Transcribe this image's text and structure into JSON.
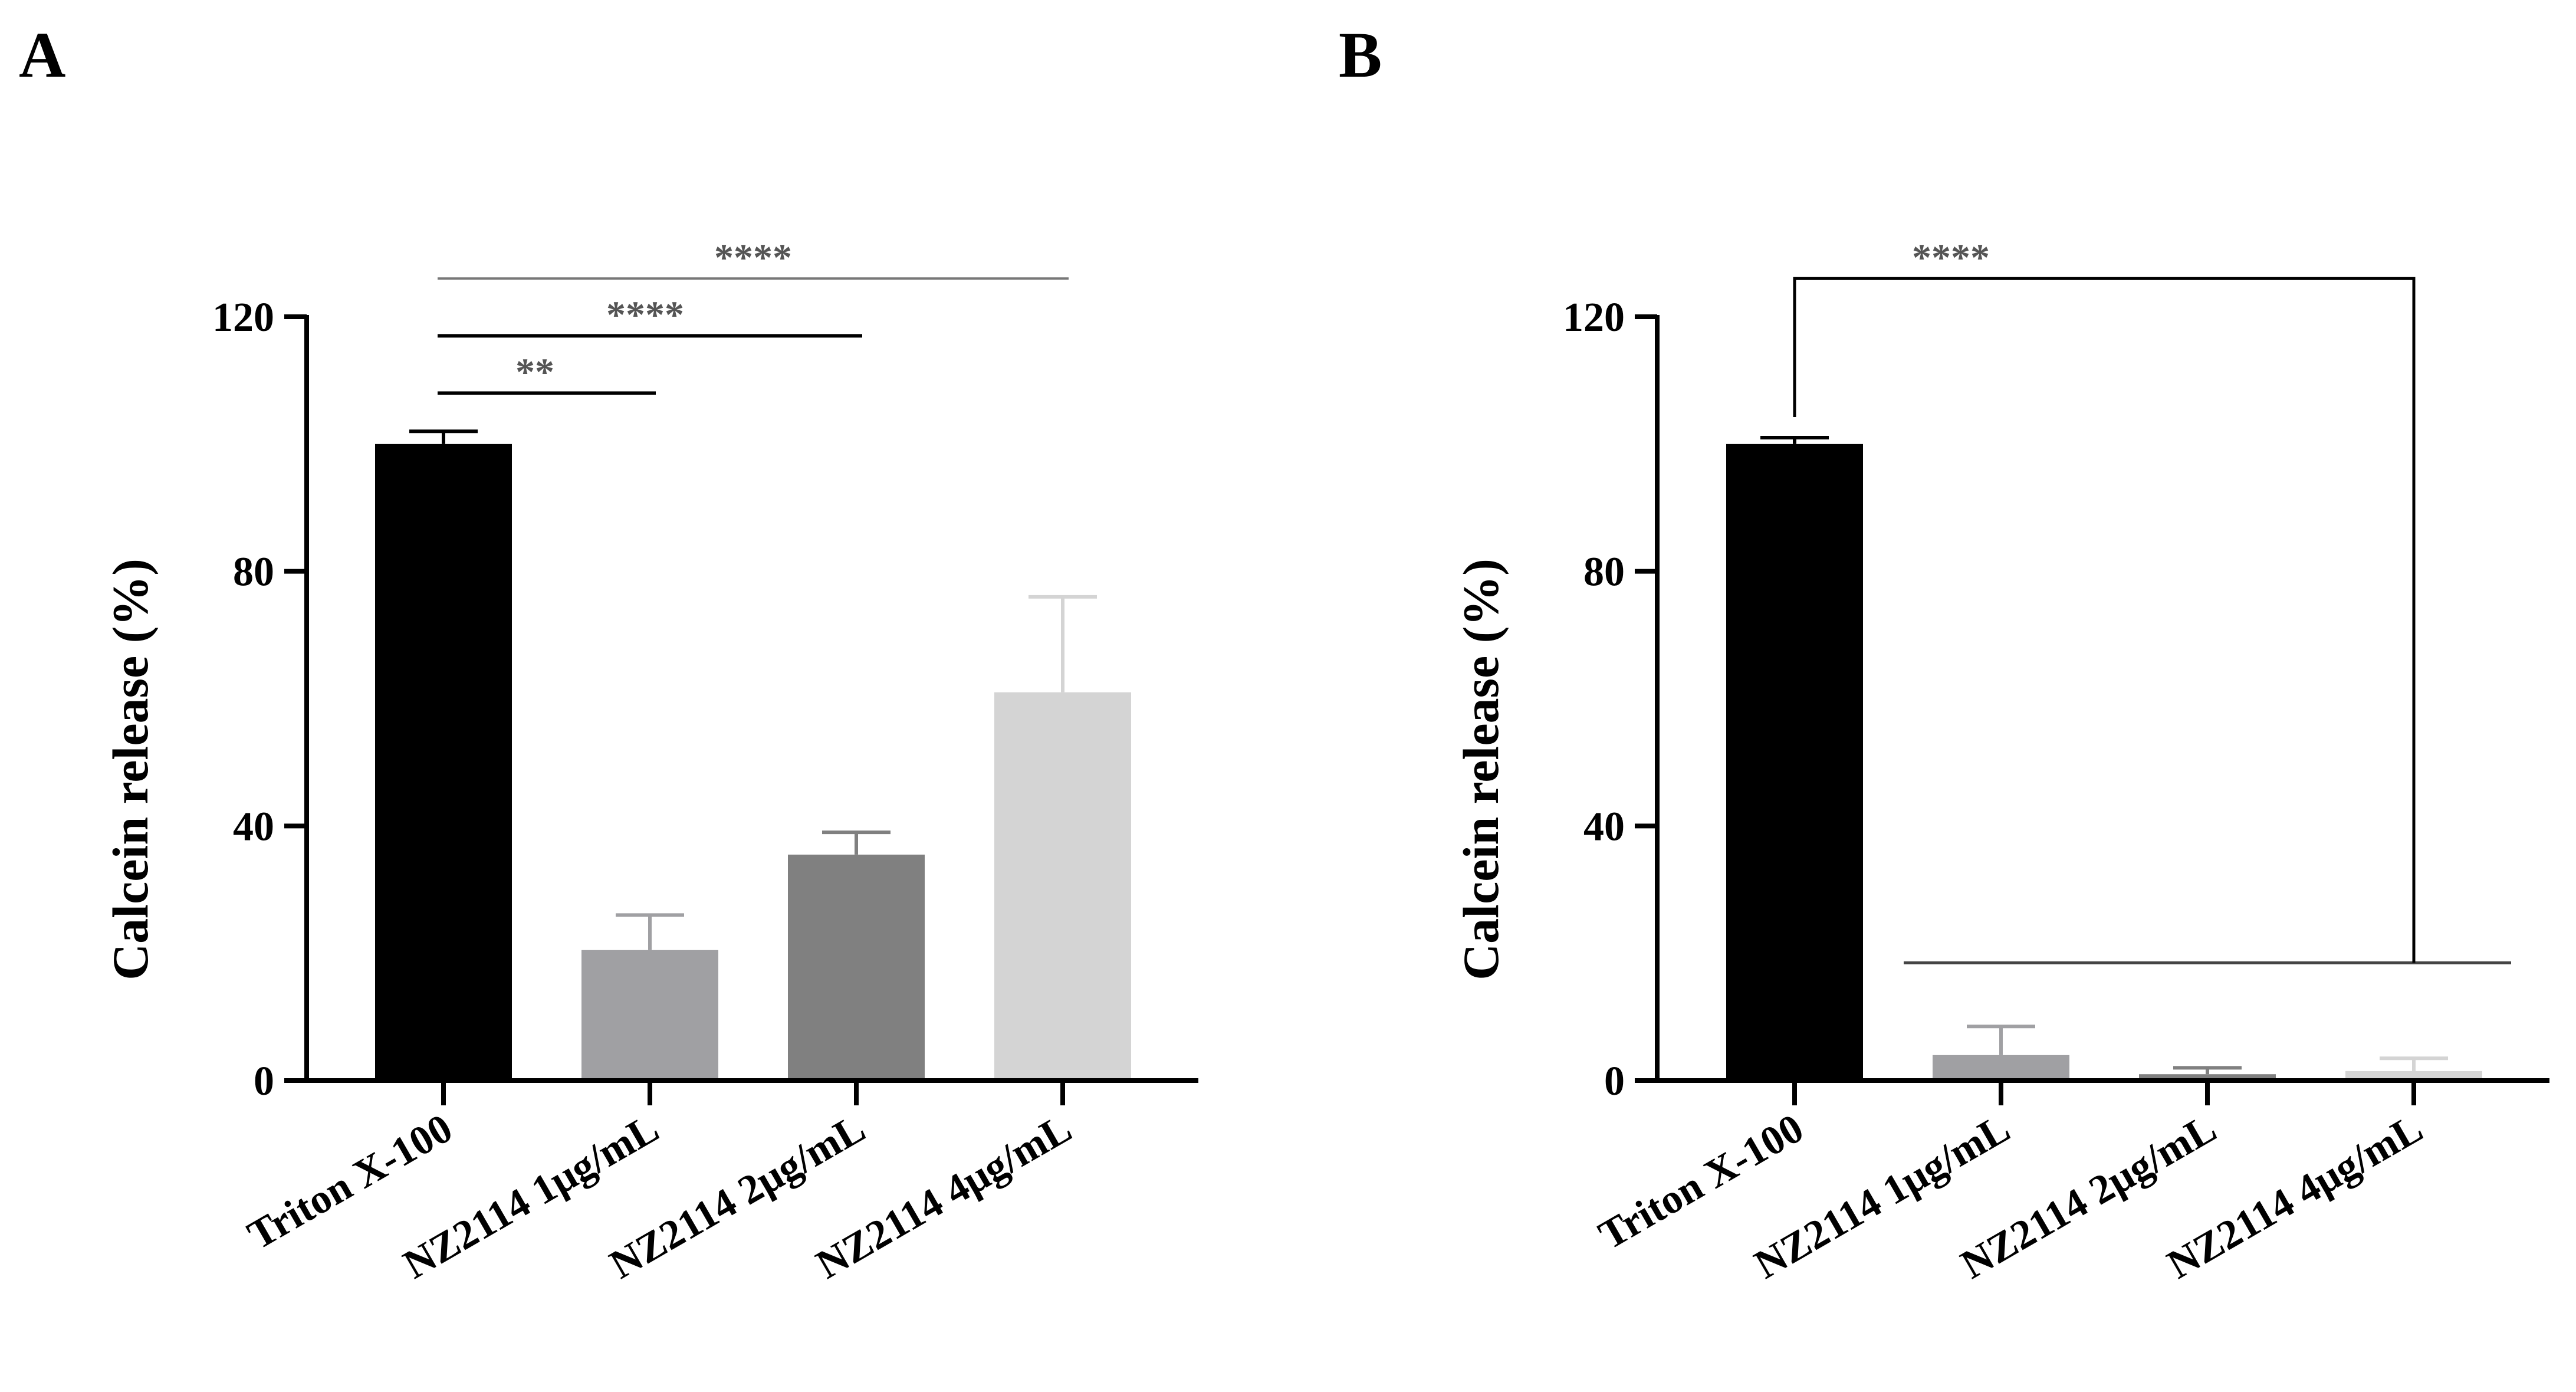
{
  "chart_data": [
    {
      "type": "bar",
      "panel_label": "A",
      "ylabel": "Calcein release (%)",
      "xlabel": "",
      "ylim": [
        0,
        120
      ],
      "yticks": [
        0,
        40,
        80,
        120
      ],
      "categories": [
        "Triton X-100",
        "NZ2114 1μg/mL",
        "NZ2114 2μg/mL",
        "NZ2114 4μg/mL"
      ],
      "values": [
        100,
        20.5,
        35.5,
        61
      ],
      "errors": [
        2,
        5.5,
        3.5,
        15
      ],
      "colors": [
        "#000000",
        "#a0a0a3",
        "#808080",
        "#d4d4d4"
      ],
      "significance": [
        {
          "from": 0,
          "to": 1,
          "label": "**",
          "y": 108
        },
        {
          "from": 0,
          "to": 2,
          "label": "****",
          "y": 117
        },
        {
          "from": 0,
          "to": 3,
          "label": "****",
          "y": 126
        }
      ]
    },
    {
      "type": "bar",
      "panel_label": "B",
      "ylabel": "Calcein release (%)",
      "xlabel": "",
      "ylim": [
        0,
        120
      ],
      "yticks": [
        0,
        40,
        80,
        120
      ],
      "categories": [
        "Triton X-100",
        "NZ2114 1μg/mL",
        "NZ2114 2μg/mL",
        "NZ2114 4μg/mL"
      ],
      "values": [
        100,
        4,
        1,
        1.5
      ],
      "errors": [
        1,
        4.5,
        1,
        2
      ],
      "colors": [
        "#000000",
        "#a0a0a3",
        "#808080",
        "#d4d4d4"
      ],
      "significance": [
        {
          "from": 0,
          "to": 3,
          "label": "****",
          "y": 126,
          "group_line_y": 18.5
        }
      ]
    }
  ]
}
